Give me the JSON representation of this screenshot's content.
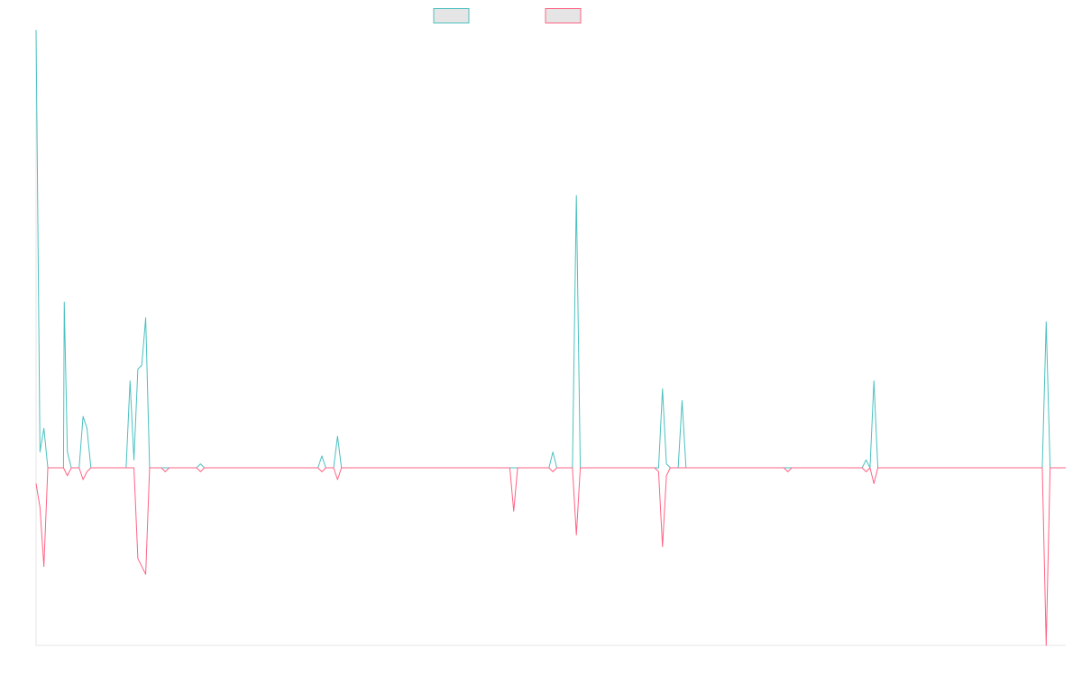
{
  "chart_data": {
    "type": "line",
    "title": "",
    "xlabel": "",
    "ylabel": "",
    "legend_position": "top-center",
    "grid": false,
    "xlim": [
      0,
      263
    ],
    "ylim": [
      -45,
      111
    ],
    "series": [
      {
        "color": "#4bc0c0",
        "fill": "#e5e5e5",
        "points": [
          [
            0,
            111
          ],
          [
            1,
            4
          ],
          [
            2,
            10
          ],
          [
            3,
            0
          ],
          [
            7,
            0
          ],
          [
            7.2,
            42
          ],
          [
            8,
            4
          ],
          [
            9,
            0
          ],
          [
            11,
            0
          ],
          [
            12,
            13
          ],
          [
            13,
            10
          ],
          [
            14,
            0
          ],
          [
            23,
            0
          ],
          [
            24,
            22
          ],
          [
            25,
            2
          ],
          [
            26,
            25
          ],
          [
            27,
            26
          ],
          [
            28,
            38
          ],
          [
            29,
            0
          ],
          [
            32,
            0
          ],
          [
            33,
            0
          ],
          [
            41,
            0
          ],
          [
            42,
            1
          ],
          [
            43,
            0
          ],
          [
            44,
            0
          ],
          [
            72,
            0
          ],
          [
            73,
            3
          ],
          [
            74,
            0
          ],
          [
            76,
            0
          ],
          [
            77,
            8
          ],
          [
            78,
            0
          ],
          [
            121,
            0
          ],
          [
            122,
            0
          ],
          [
            123,
            0
          ],
          [
            131,
            0
          ],
          [
            132,
            4
          ],
          [
            133,
            0
          ],
          [
            137,
            0
          ],
          [
            138,
            69
          ],
          [
            139,
            0
          ],
          [
            158,
            0
          ],
          [
            159,
            0
          ],
          [
            160,
            20
          ],
          [
            161,
            1
          ],
          [
            162,
            0
          ],
          [
            164,
            0
          ],
          [
            165,
            17
          ],
          [
            166,
            0
          ],
          [
            191,
            0
          ],
          [
            192,
            0
          ],
          [
            193,
            0
          ],
          [
            211,
            0
          ],
          [
            212,
            2
          ],
          [
            213,
            0
          ],
          [
            214,
            22
          ],
          [
            215,
            0
          ],
          [
            257,
            0
          ],
          [
            258,
            37
          ],
          [
            259,
            0
          ],
          [
            263,
            0
          ]
        ]
      },
      {
        "color": "#ff6384",
        "fill": "#e5e5e5",
        "points": [
          [
            0,
            -4
          ],
          [
            1,
            -10
          ],
          [
            2,
            -25
          ],
          [
            3,
            0
          ],
          [
            7,
            0
          ],
          [
            8,
            -2
          ],
          [
            9,
            0
          ],
          [
            11,
            0
          ],
          [
            12,
            -3
          ],
          [
            13,
            -1
          ],
          [
            14,
            0
          ],
          [
            25,
            0
          ],
          [
            26,
            -23
          ],
          [
            27,
            -25
          ],
          [
            28,
            -27
          ],
          [
            29,
            0
          ],
          [
            32,
            0
          ],
          [
            33,
            -1
          ],
          [
            34,
            0
          ],
          [
            41,
            0
          ],
          [
            42,
            -1
          ],
          [
            43,
            0
          ],
          [
            72,
            0
          ],
          [
            73,
            -1
          ],
          [
            74,
            0
          ],
          [
            76,
            0
          ],
          [
            77,
            -3
          ],
          [
            78,
            0
          ],
          [
            121,
            0
          ],
          [
            122,
            -11
          ],
          [
            123,
            0
          ],
          [
            131,
            0
          ],
          [
            132,
            -1
          ],
          [
            133,
            0
          ],
          [
            137,
            0
          ],
          [
            138,
            -17
          ],
          [
            139,
            0
          ],
          [
            158,
            0
          ],
          [
            159,
            -1
          ],
          [
            160,
            -20
          ],
          [
            161,
            -2
          ],
          [
            162,
            0
          ],
          [
            191,
            0
          ],
          [
            192,
            -1
          ],
          [
            193,
            0
          ],
          [
            211,
            0
          ],
          [
            212,
            -1
          ],
          [
            213,
            0
          ],
          [
            214,
            -4
          ],
          [
            215,
            0
          ],
          [
            257,
            0
          ],
          [
            258,
            -45
          ],
          [
            259,
            0
          ],
          [
            263,
            0
          ]
        ]
      }
    ]
  }
}
